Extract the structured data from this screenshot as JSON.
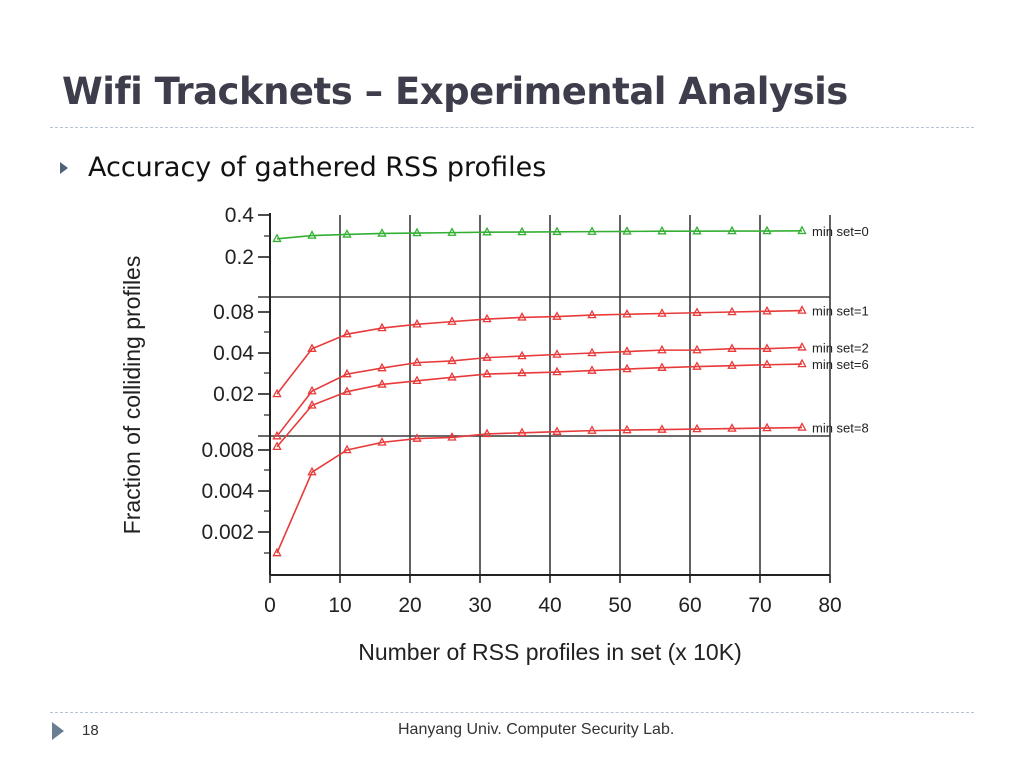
{
  "slide": {
    "title": "Wifi Tracknets – Experimental Analysis",
    "bullet": "Accuracy of gathered RSS profiles",
    "page_number": "18",
    "footer": "Hanyang Univ. Computer Security Lab."
  },
  "chart_data": {
    "type": "line",
    "title": "",
    "xlabel": "Number of RSS profiles in set (x 10K)",
    "ylabel": "Fraction of colliding profiles",
    "xlim": [
      0,
      80
    ],
    "x_ticks": [
      0,
      10,
      20,
      30,
      40,
      50,
      60,
      70,
      80
    ],
    "grid": true,
    "scale": "broken y-axis with three panels",
    "panels": [
      {
        "name": "top",
        "ticks": [
          "0.4",
          "0.2"
        ]
      },
      {
        "name": "middle",
        "ticks": [
          "0.08",
          "0.04",
          "0.02"
        ]
      },
      {
        "name": "bottom",
        "ticks": [
          "0.008",
          "0.004",
          "0.002"
        ]
      }
    ],
    "x": [
      1,
      6,
      11,
      16,
      21,
      26,
      31,
      36,
      41,
      46,
      51,
      56,
      61,
      66,
      71,
      76
    ],
    "series": [
      {
        "name": "min set=0",
        "panel": "top",
        "color": "#33b033",
        "values": [
          0.27,
          0.285,
          0.29,
          0.295,
          0.297,
          0.299,
          0.301,
          0.302,
          0.303,
          0.304,
          0.305,
          0.306,
          0.306,
          0.307,
          0.307,
          0.308
        ]
      },
      {
        "name": "min set=1",
        "panel": "middle",
        "color": "#e83a3a",
        "values": [
          0.02,
          0.043,
          0.055,
          0.061,
          0.065,
          0.068,
          0.071,
          0.073,
          0.074,
          0.076,
          0.077,
          0.078,
          0.079,
          0.08,
          0.081,
          0.082
        ]
      },
      {
        "name": "min set=2",
        "panel": "middle",
        "color": "#e83a3a",
        "values": [
          0.0098,
          0.021,
          0.028,
          0.031,
          0.034,
          0.035,
          0.037,
          0.038,
          0.039,
          0.04,
          0.041,
          0.042,
          0.042,
          0.043,
          0.043,
          0.044
        ]
      },
      {
        "name": "min set=6",
        "panel": "middle",
        "color": "#e83a3a",
        "values": [
          0.0082,
          0.0165,
          0.0208,
          0.0235,
          0.025,
          0.0265,
          0.028,
          0.0285,
          0.029,
          0.0297,
          0.0305,
          0.0312,
          0.0318,
          0.0323,
          0.0328,
          0.0332
        ]
      },
      {
        "name": "min set=8",
        "panel": "bottom",
        "color": "#e83a3a",
        "values": [
          0.0014,
          0.0055,
          0.008,
          0.0091,
          0.0097,
          0.0099,
          0.0105,
          0.0107,
          0.0109,
          0.0111,
          0.0112,
          0.0113,
          0.0114,
          0.0115,
          0.0116,
          0.0117
        ]
      }
    ]
  }
}
